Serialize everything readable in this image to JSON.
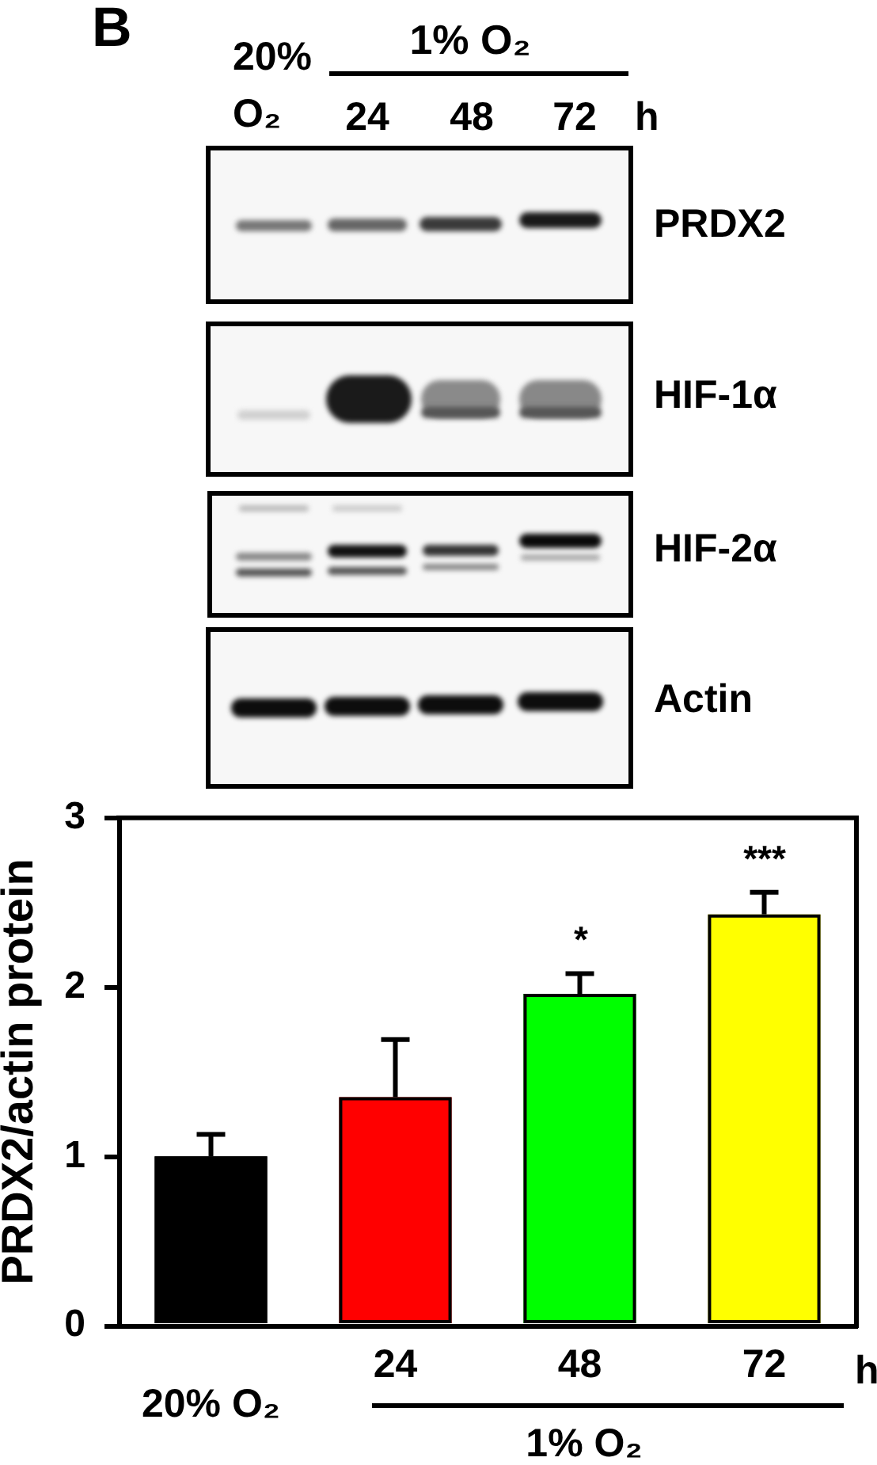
{
  "chart_data": {
    "type": "bar",
    "ylabel": "PRDX2/actin protein",
    "categories": [
      "20% O₂",
      "24",
      "48",
      "72"
    ],
    "values": [
      1.0,
      1.35,
      1.96,
      2.43
    ],
    "colors": [
      "#000000",
      "#ff0000",
      "#00ff00",
      "#ffff00"
    ],
    "errors": [
      [
        1.0,
        1.13
      ],
      [
        1.35,
        1.69
      ],
      [
        1.96,
        2.08
      ],
      [
        2.43,
        2.56
      ]
    ],
    "ylim": [
      0,
      3
    ],
    "yticks": [
      0,
      1,
      2,
      3
    ],
    "annotations": [
      "B",
      "20% O₂",
      "1% O₂",
      "24",
      "48",
      "72",
      "h",
      "PRDX2",
      "HIF-1α",
      "HIF-2α",
      "Actin",
      "*",
      "***",
      "h",
      "1% O₂"
    ]
  }
}
